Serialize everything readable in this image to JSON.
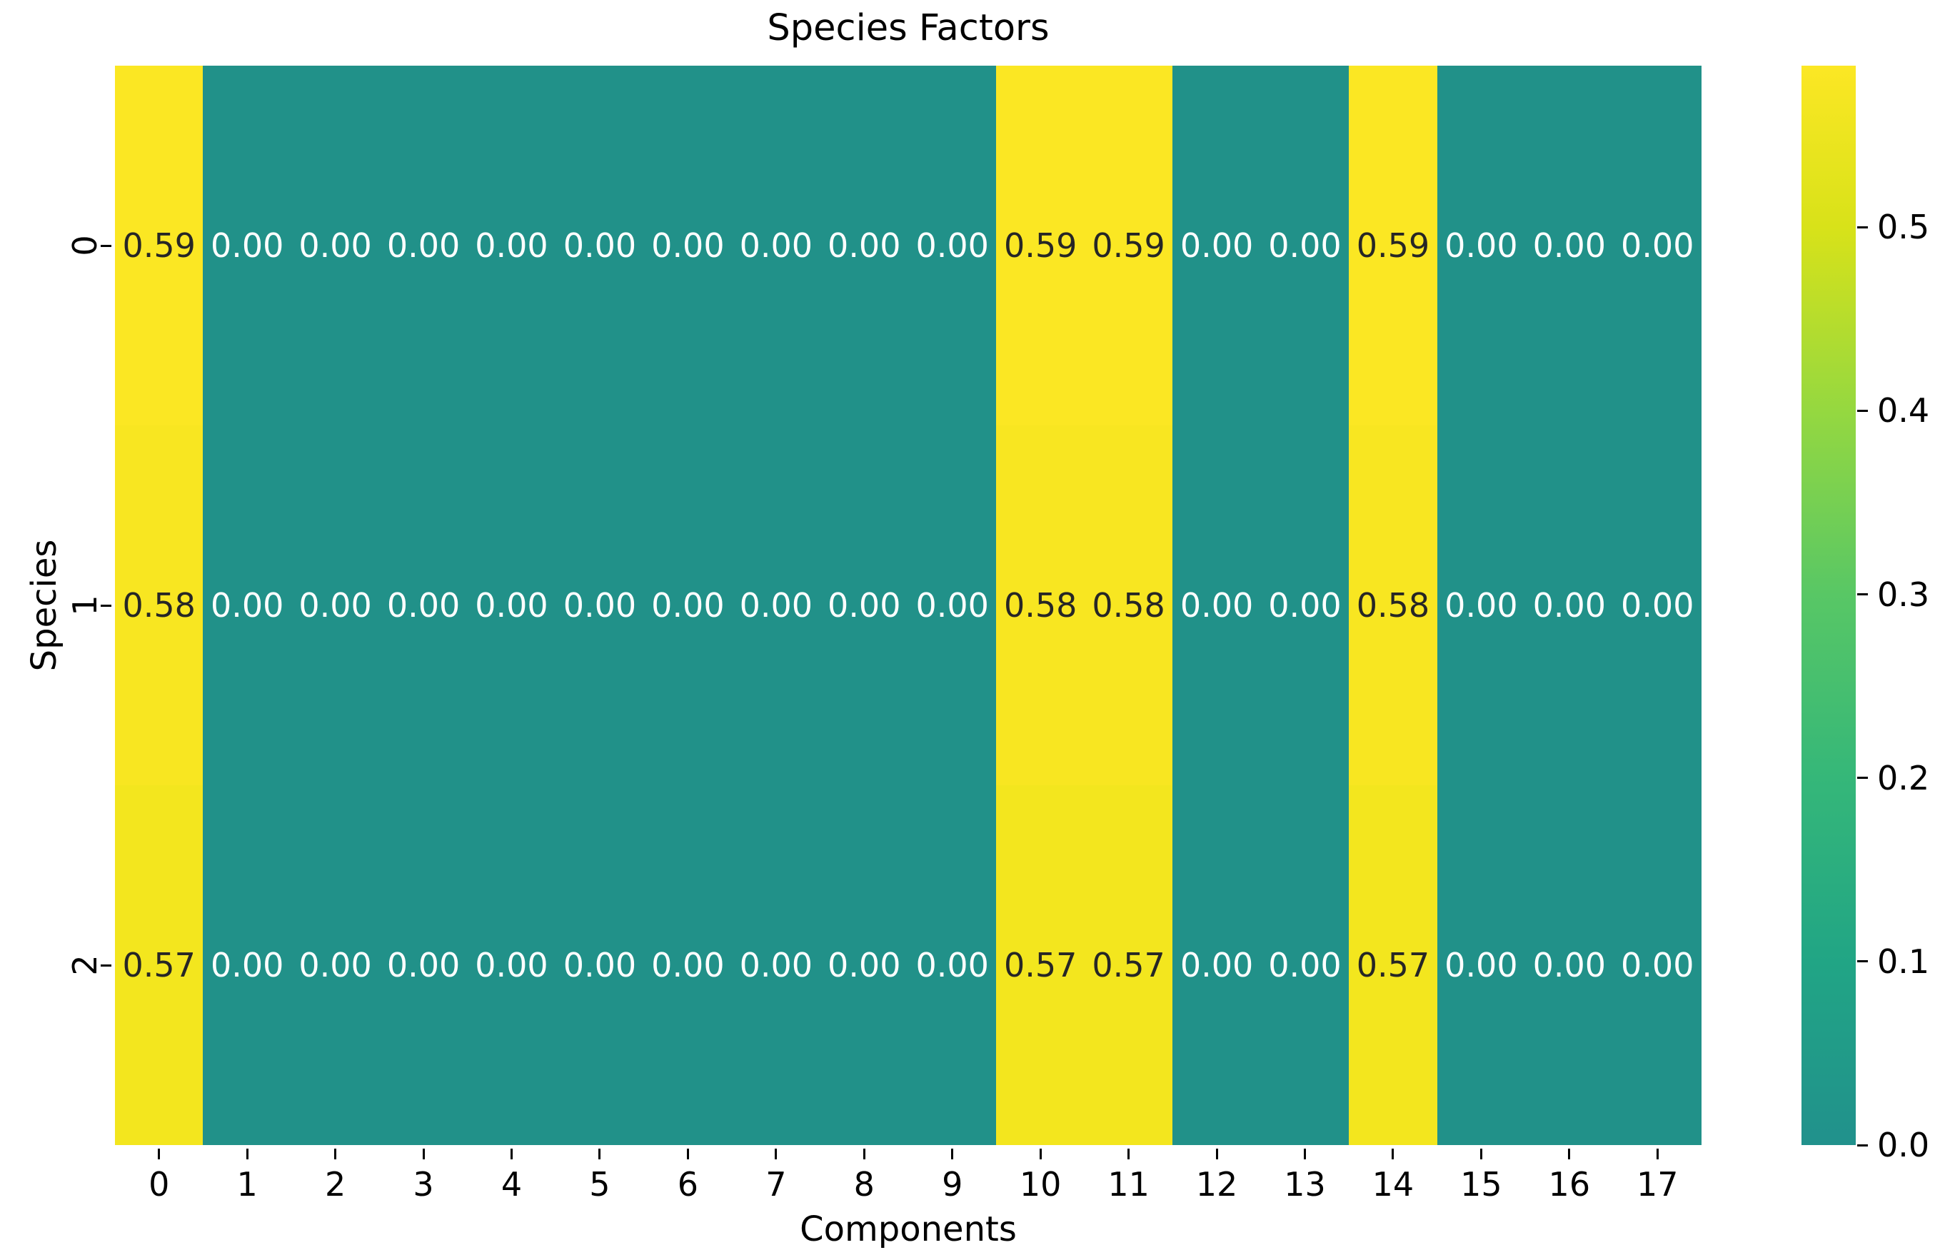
{
  "chart_data": {
    "type": "heatmap",
    "title": "Species Factors",
    "xlabel": "Components",
    "ylabel": "Species",
    "x_ticklabels": [
      "0",
      "1",
      "2",
      "3",
      "4",
      "5",
      "6",
      "7",
      "8",
      "9",
      "10",
      "11",
      "12",
      "13",
      "14",
      "15",
      "16",
      "17"
    ],
    "y_ticklabels": [
      "0",
      "1",
      "2"
    ],
    "matrix": [
      [
        0.59,
        0.0,
        0.0,
        0.0,
        0.0,
        0.0,
        0.0,
        0.0,
        0.0,
        0.0,
        0.59,
        0.59,
        0.0,
        0.0,
        0.59,
        0.0,
        0.0,
        0.0
      ],
      [
        0.58,
        0.0,
        0.0,
        0.0,
        0.0,
        0.0,
        0.0,
        0.0,
        0.0,
        0.0,
        0.58,
        0.58,
        0.0,
        0.0,
        0.58,
        0.0,
        0.0,
        0.0
      ],
      [
        0.57,
        0.0,
        0.0,
        0.0,
        0.0,
        0.0,
        0.0,
        0.0,
        0.0,
        0.0,
        0.57,
        0.57,
        0.0,
        0.0,
        0.57,
        0.0,
        0.0,
        0.0
      ]
    ],
    "cell_labels": [
      [
        "0.59",
        "0.00",
        "0.00",
        "0.00",
        "0.00",
        "0.00",
        "0.00",
        "0.00",
        "0.00",
        "0.00",
        "0.59",
        "0.59",
        "0.00",
        "0.00",
        "0.59",
        "0.00",
        "0.00",
        "0.00"
      ],
      [
        "0.58",
        "0.00",
        "0.00",
        "0.00",
        "0.00",
        "0.00",
        "0.00",
        "0.00",
        "0.00",
        "0.00",
        "0.58",
        "0.58",
        "0.00",
        "0.00",
        "0.58",
        "0.00",
        "0.00",
        "0.00"
      ],
      [
        "0.57",
        "0.00",
        "0.00",
        "0.00",
        "0.00",
        "0.00",
        "0.00",
        "0.00",
        "0.00",
        "0.00",
        "0.57",
        "0.57",
        "0.00",
        "0.00",
        "0.57",
        "0.00",
        "0.00",
        "0.00"
      ]
    ],
    "colorbar": {
      "tick_values": [
        0.0,
        0.1,
        0.2,
        0.3,
        0.4,
        0.5
      ],
      "ticklabels": [
        "0.0",
        "0.1",
        "0.2",
        "0.3",
        "0.4",
        "0.5"
      ],
      "vmin": 0.0,
      "vmax": 0.588,
      "gradient_stops": [
        [
          "0%",
          "#21918c"
        ],
        [
          "17%",
          "#21a585"
        ],
        [
          "34%",
          "#35b779"
        ],
        [
          "51%",
          "#58c765"
        ],
        [
          "68%",
          "#95d840"
        ],
        [
          "85%",
          "#d8e219"
        ],
        [
          "100%",
          "#fce724"
        ]
      ]
    },
    "colors": {
      "cell_low": "#219189",
      "row_high": [
        "#fbe723",
        "#f8e621",
        "#f3e61e"
      ],
      "annot_on_high": "#262626",
      "annot_on_low": "#ffffff",
      "axis_text": "#000000"
    },
    "grid": false,
    "legend": "colorbar-right"
  }
}
